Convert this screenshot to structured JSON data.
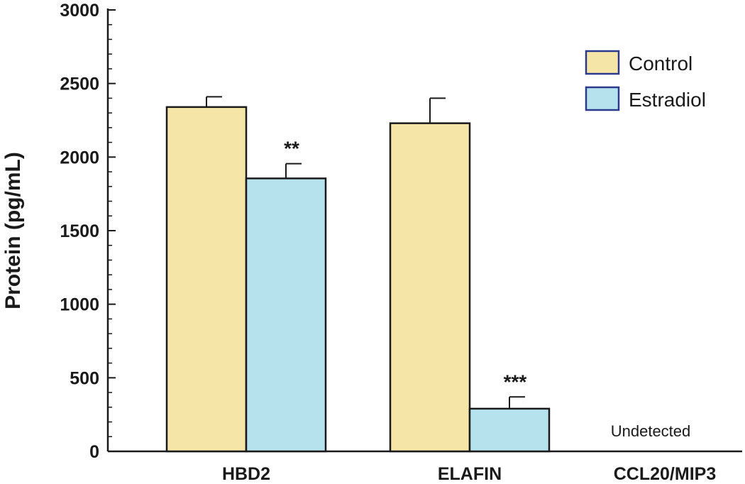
{
  "chart_data": {
    "type": "bar",
    "categories": [
      "HBD2",
      "ELAFIN",
      "CCL20/MIP3"
    ],
    "series": [
      {
        "name": "Control",
        "values": [
          2340,
          2230,
          null
        ],
        "errors": [
          70,
          170,
          null
        ]
      },
      {
        "name": "Estradiol",
        "values": [
          1855,
          290,
          null
        ],
        "errors": [
          100,
          80,
          null
        ]
      }
    ],
    "ylabel": "Protein (pg/mL)",
    "xlabel": "",
    "ylim": [
      0,
      3000
    ],
    "yticks": [
      0,
      500,
      1000,
      1500,
      2000,
      2500,
      3000
    ],
    "minor_tick_step": 100,
    "legend_position": "top-right",
    "annotations": [
      {
        "category": "HBD2",
        "series": "Estradiol",
        "text": "**"
      },
      {
        "category": "ELAFIN",
        "series": "Estradiol",
        "text": "***"
      }
    ],
    "category_notes": [
      {
        "category": "CCL20/MIP3",
        "text": "Undetected"
      }
    ],
    "colors": {
      "Control": "#f5e6a8",
      "Estradiol": "#b5e2ed",
      "legend_border": "#2b3a8c",
      "bar_border": "#1a1a1a"
    }
  }
}
